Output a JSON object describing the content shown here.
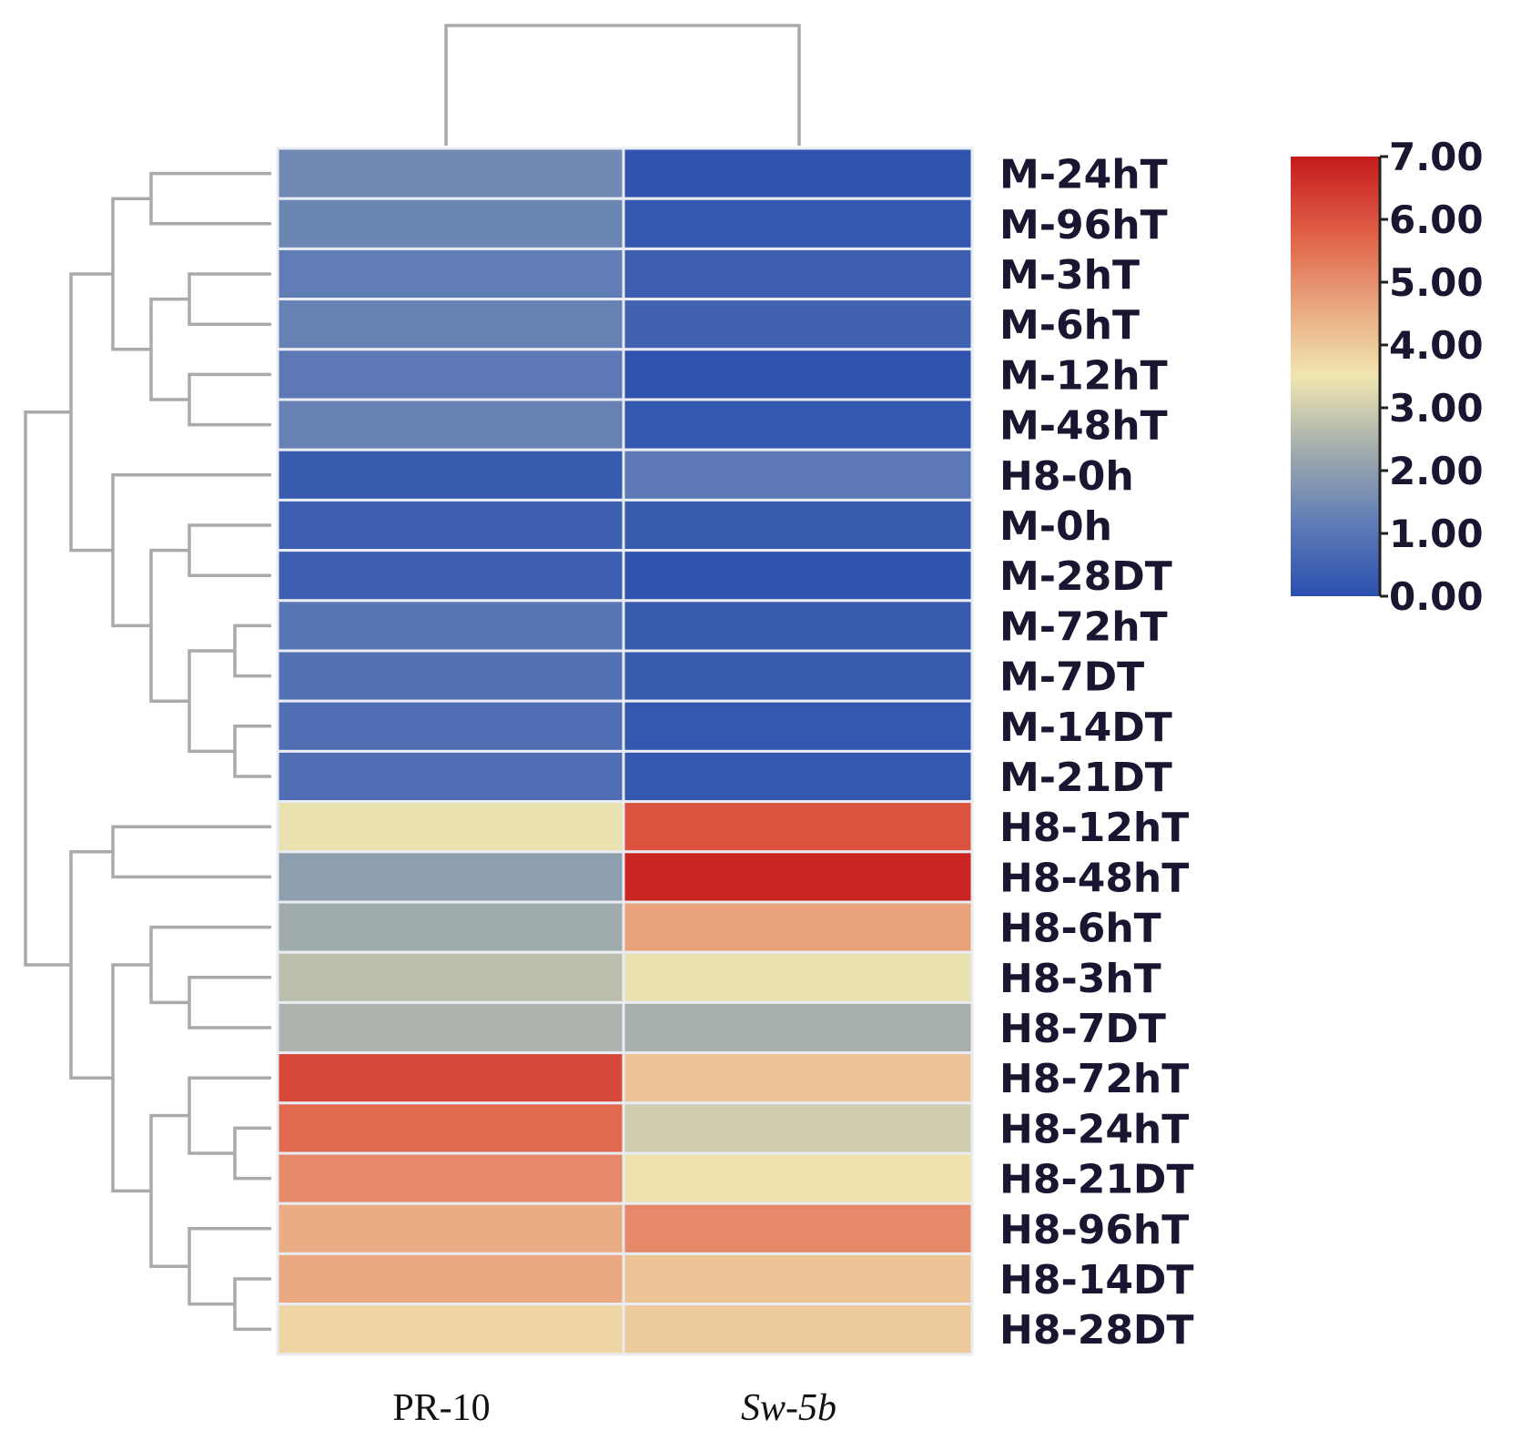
{
  "chart_data": {
    "type": "heatmap",
    "columns": [
      "PR-10",
      "Sw-5b"
    ],
    "column_styles": [
      "normal",
      "italic"
    ],
    "rows": [
      "M-24hT",
      "M-96hT",
      "M-3hT",
      "M-6hT",
      "M-12hT",
      "M-48hT",
      "H8-0h",
      "M-0h",
      "M-28DT",
      "M-72hT",
      "M-7DT",
      "M-14DT",
      "M-21DT",
      "H8-12hT",
      "H8-48hT",
      "H8-6hT",
      "H8-3hT",
      "H8-7DT",
      "H8-72hT",
      "H8-24hT",
      "H8-21DT",
      "H8-96hT",
      "H8-14DT",
      "H8-28DT"
    ],
    "values": [
      [
        1.5,
        0.1
      ],
      [
        1.4,
        0.2
      ],
      [
        1.2,
        0.4
      ],
      [
        1.3,
        0.5
      ],
      [
        1.1,
        0.1
      ],
      [
        1.3,
        0.2
      ],
      [
        0.3,
        1.1
      ],
      [
        0.4,
        0.3
      ],
      [
        0.4,
        0.1
      ],
      [
        1.0,
        0.3
      ],
      [
        0.9,
        0.3
      ],
      [
        0.8,
        0.2
      ],
      [
        0.8,
        0.2
      ],
      [
        3.4,
        6.0
      ],
      [
        2.0,
        6.8
      ],
      [
        2.3,
        4.7
      ],
      [
        2.7,
        3.4
      ],
      [
        2.5,
        2.4
      ],
      [
        6.2,
        4.1
      ],
      [
        5.6,
        3.0
      ],
      [
        5.1,
        3.6
      ],
      [
        4.5,
        5.1
      ],
      [
        4.6,
        4.1
      ],
      [
        3.8,
        4.0
      ]
    ],
    "colorbar": {
      "min": 0,
      "max": 7,
      "ticks": [
        "0.00",
        "1.00",
        "2.00",
        "3.00",
        "4.00",
        "5.00",
        "6.00",
        "7.00"
      ],
      "colors": [
        "#2b4fae",
        "#5f7cb6",
        "#a2acac",
        "#f0e6b0",
        "#e9a47c",
        "#de5c45",
        "#c51b1b"
      ]
    },
    "row_dendrogram": "left",
    "column_dendrogram": "top"
  }
}
